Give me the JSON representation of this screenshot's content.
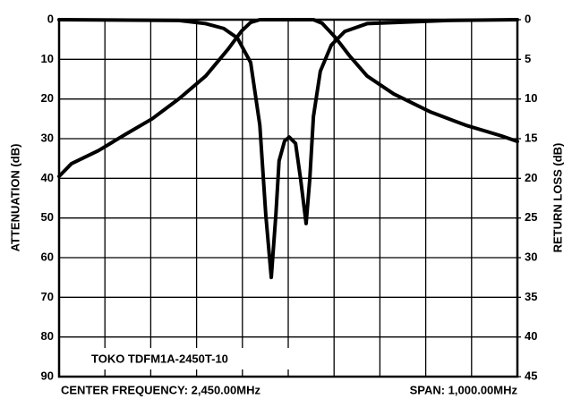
{
  "chart_data": {
    "type": "line",
    "y_label": "ATTENUATION (dB)",
    "y2_label": "RETURN LOSS (dB)",
    "x_labels": [
      "CENTER FREQUENCY: 2,450.00MHz",
      "SPAN: 1,000.00MHz"
    ],
    "annotation": "TOKO TDFM1A-2450T-10",
    "xlim": [
      1950,
      2950
    ],
    "xticks": [
      1950,
      2050,
      2150,
      2250,
      2350,
      2450,
      2550,
      2650,
      2750,
      2850,
      2950
    ],
    "ylim": [
      90,
      0
    ],
    "yticks": [
      0,
      10,
      20,
      30,
      40,
      50,
      60,
      70,
      80,
      90
    ],
    "y2lim": [
      45,
      0
    ],
    "y2ticks": [
      0,
      5,
      10,
      15,
      20,
      25,
      30,
      35,
      40,
      45
    ],
    "grid": true,
    "series": [
      {
        "color": "#000000",
        "x": [
          1950,
          1977,
          2036,
          2095,
          2153,
          2212,
          2270,
          2319,
          2348,
          2368,
          2388,
          2505,
          2524,
          2553,
          2583,
          2622,
          2680,
          2759,
          2837,
          2915,
          2950
        ],
        "values": [
          39.5,
          36.3,
          33,
          28.9,
          25,
          19.9,
          14.2,
          7.4,
          2.9,
          0.7,
          0,
          0,
          0.9,
          4.5,
          9,
          14.2,
          18.7,
          23.2,
          26.6,
          29.3,
          30.7
        ]
      },
      {
        "color": "#000000",
        "axis": "y2",
        "x": [
          1950,
          2212,
          2270,
          2309,
          2339,
          2368,
          2388,
          2401,
          2413,
          2423,
          2430,
          2442,
          2452,
          2466,
          2477,
          2489,
          2497,
          2505,
          2520,
          2544,
          2573,
          2622,
          2798,
          2950
        ],
        "values": [
          0,
          0.1,
          0.5,
          1.1,
          2.3,
          5.4,
          13.3,
          24.6,
          32.5,
          24.6,
          17.8,
          15.3,
          14.8,
          15.6,
          20.1,
          25.7,
          20.1,
          12.2,
          6.5,
          3.2,
          1.5,
          0.5,
          0.1,
          0
        ]
      }
    ]
  }
}
